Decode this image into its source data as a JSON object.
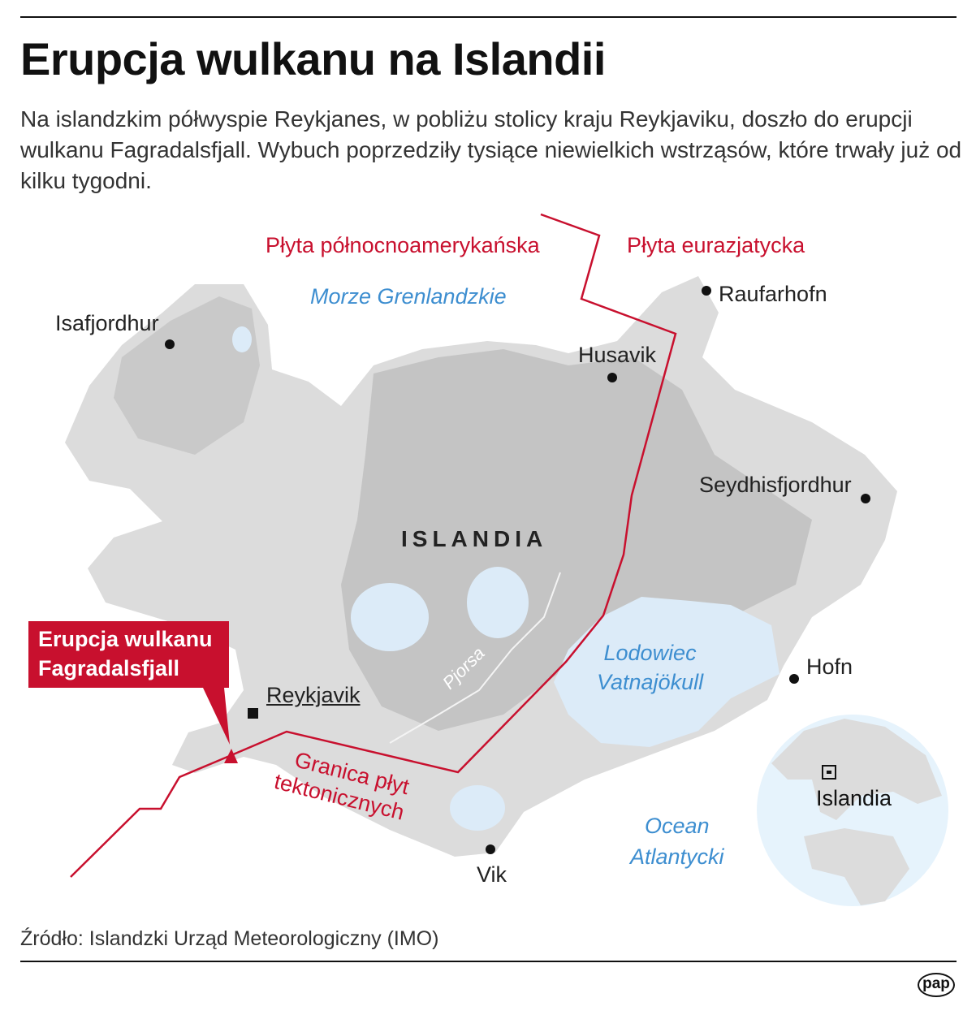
{
  "title": "Erupcja wulkanu na Islandii",
  "lead": "Na islandzkim półwyspie Reykjanes, w pobliżu stolicy kraju Reykjaviku, doszło do erupcji wulkanu Fagradalsfjall. Wybuch poprzedziły tysiące niewielkich wstrząsów, które trwały już od kilku tygodni.",
  "map": {
    "plates": {
      "north_american": "Płyta północnoamerykańska",
      "eurasian": "Płyta eurazjatycka"
    },
    "boundary_label": [
      "Granica płyt",
      "tektonicznych"
    ],
    "seas": {
      "greenland": "Morze Grenlandzkie",
      "atlantic": [
        "Ocean",
        "Atlantycki"
      ]
    },
    "glacier": [
      "Lodowiec",
      "Vatnajökull"
    ],
    "river": "Pjorsa",
    "country": "ISLANDIA",
    "capital": "Reykjavik",
    "cities": [
      "Isafjordhur",
      "Raufarhofn",
      "Husavik",
      "Seydhisfjordhur",
      "Hofn",
      "Vik"
    ],
    "callout": [
      "Erupcja wulkanu",
      "Fagradalsfjall"
    ],
    "locator_label": "Islandia",
    "colors": {
      "accent": "#c8102e",
      "water_label": "#3d8ed0",
      "land": "#dcdcdc",
      "lake": "#dcebf8"
    }
  },
  "source": "Źródło: Islandzki Urząd Meteorologiczny (IMO)",
  "logo": "pap"
}
